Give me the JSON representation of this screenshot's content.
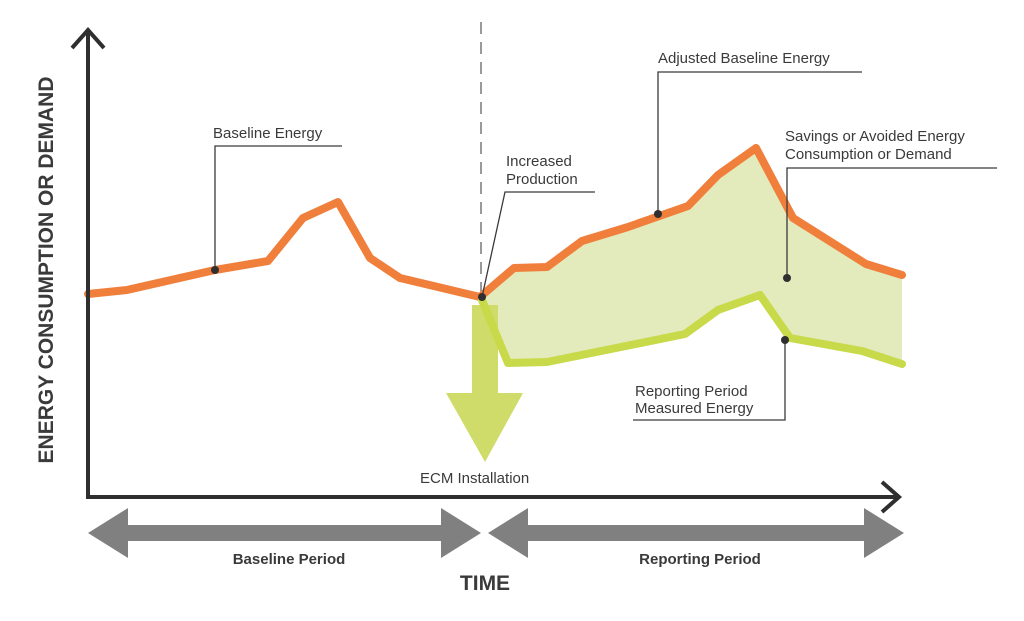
{
  "colors": {
    "baseline": "#f07f3c",
    "reporting": "#c8d94a",
    "savings_fill": "#e3ebbd",
    "ecm_arrow": "#cfdc6a",
    "axis": "#2f2f2f",
    "period_arrow": "#808080",
    "text": "#3a3a3a"
  },
  "axes": {
    "y_label": "ENERGY CONSUMPTION OR DEMAND",
    "x_label": "TIME"
  },
  "annotations": {
    "baseline_energy": "Baseline Energy",
    "increased_production_line1": "Increased",
    "increased_production_line2": "Production",
    "adjusted_baseline": "Adjusted Baseline Energy",
    "savings_line1": "Savings or Avoided Energy",
    "savings_line2": "Consumption or Demand",
    "measured_line1": "Reporting Period",
    "measured_line2": "Measured Energy",
    "ecm_installation": "ECM Installation"
  },
  "periods": {
    "baseline": "Baseline Period",
    "reporting": "Reporting Period"
  },
  "icons": {
    "y_axis_arrow": "chevron-up-icon",
    "x_axis_arrow": "chevron-right-icon",
    "ecm_arrow": "arrow-down-icon"
  }
}
